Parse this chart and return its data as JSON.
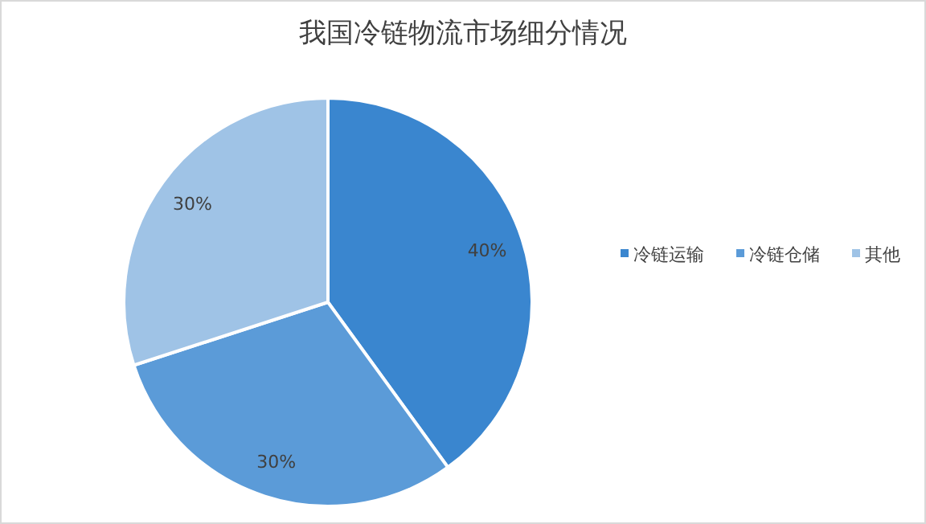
{
  "chart_data": {
    "type": "pie",
    "title": "我国冷链物流市场细分情况",
    "categories": [
      "冷链运输",
      "冷链仓储",
      "其他"
    ],
    "values": [
      40,
      30,
      30
    ],
    "colors": [
      "#3a86cf",
      "#5b9bd8",
      "#9fc3e6"
    ],
    "value_labels": [
      "40%",
      "30%",
      "30%"
    ],
    "legend": "right"
  }
}
